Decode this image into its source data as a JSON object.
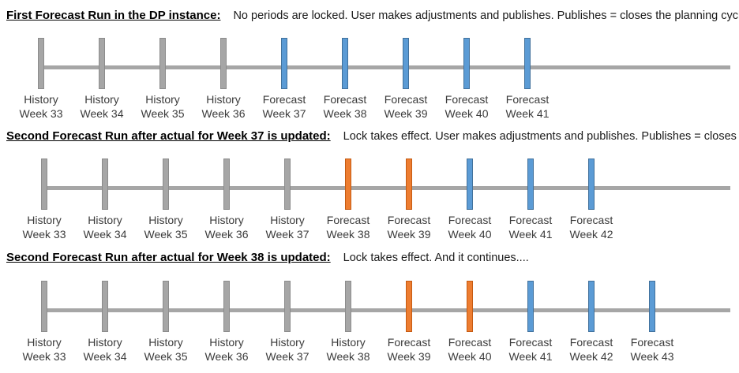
{
  "colors": {
    "history": {
      "fill": "#a6a6a6",
      "border": "#8c8c8c"
    },
    "forecast": {
      "fill": "#5b9bd5",
      "border": "#41719c"
    },
    "locked": {
      "fill": "#ed7d31",
      "border": "#c55a11"
    },
    "axis": "#a6a6a6"
  },
  "sections": [
    {
      "heading": "First Forecast Run in the DP instance:",
      "description": "No periods are locked. User makes adjustments and publishes. Publishes = closes the planning cycle",
      "ticks": [
        {
          "kind": "history",
          "line1": "History",
          "line2": "Week 33"
        },
        {
          "kind": "history",
          "line1": "History",
          "line2": "Week 34"
        },
        {
          "kind": "history",
          "line1": "History",
          "line2": "Week 35"
        },
        {
          "kind": "history",
          "line1": "History",
          "line2": "Week 36"
        },
        {
          "kind": "forecast",
          "line1": "Forecast",
          "line2": "Week 37"
        },
        {
          "kind": "forecast",
          "line1": "Forecast",
          "line2": "Week 38"
        },
        {
          "kind": "forecast",
          "line1": "Forecast",
          "line2": "Week 39"
        },
        {
          "kind": "forecast",
          "line1": "Forecast",
          "line2": "Week 40"
        },
        {
          "kind": "forecast",
          "line1": "Forecast",
          "line2": "Week 41"
        }
      ]
    },
    {
      "heading": "Second Forecast Run after actual for Week 37 is updated:",
      "description": "Lock takes effect. User makes adjustments and publishes. Publishes = closes the planning cycle",
      "ticks": [
        {
          "kind": "history",
          "line1": "History",
          "line2": "Week 33"
        },
        {
          "kind": "history",
          "line1": "History",
          "line2": "Week 34"
        },
        {
          "kind": "history",
          "line1": "History",
          "line2": "Week 35"
        },
        {
          "kind": "history",
          "line1": "History",
          "line2": "Week 36"
        },
        {
          "kind": "history",
          "line1": "History",
          "line2": "Week 37"
        },
        {
          "kind": "locked",
          "line1": "Forecast",
          "line2": "Week 38"
        },
        {
          "kind": "locked",
          "line1": "Forecast",
          "line2": "Week 39"
        },
        {
          "kind": "forecast",
          "line1": "Forecast",
          "line2": "Week 40"
        },
        {
          "kind": "forecast",
          "line1": "Forecast",
          "line2": "Week 41"
        },
        {
          "kind": "forecast",
          "line1": "Forecast",
          "line2": "Week 42"
        }
      ]
    },
    {
      "heading": "Second Forecast Run after actual for Week 38 is updated:",
      "description": "Lock takes effect. And it continues....",
      "ticks": [
        {
          "kind": "history",
          "line1": "History",
          "line2": "Week 33"
        },
        {
          "kind": "history",
          "line1": "History",
          "line2": "Week 34"
        },
        {
          "kind": "history",
          "line1": "History",
          "line2": "Week 35"
        },
        {
          "kind": "history",
          "line1": "History",
          "line2": "Week 36"
        },
        {
          "kind": "history",
          "line1": "History",
          "line2": "Week 37"
        },
        {
          "kind": "history",
          "line1": "History",
          "line2": "Week 38"
        },
        {
          "kind": "locked",
          "line1": "Forecast",
          "line2": "Week 39"
        },
        {
          "kind": "locked",
          "line1": "Forecast",
          "line2": "Week 40"
        },
        {
          "kind": "forecast",
          "line1": "Forecast",
          "line2": "Week 41"
        },
        {
          "kind": "forecast",
          "line1": "Forecast",
          "line2": "Week 42"
        },
        {
          "kind": "forecast",
          "line1": "Forecast",
          "line2": "Week 43"
        }
      ]
    }
  ]
}
